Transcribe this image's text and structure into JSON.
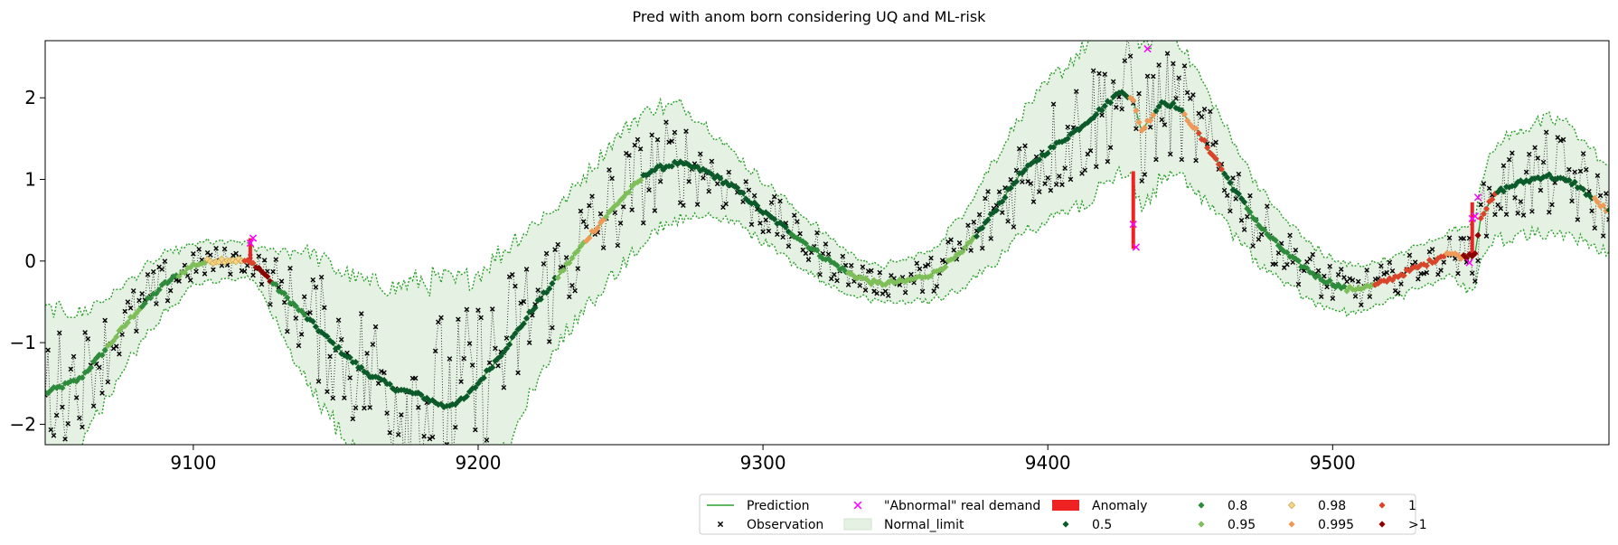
{
  "chart_data": {
    "type": "line",
    "title": "Pred with anom born considering UQ and ML-risk",
    "xlabel": "",
    "ylabel": "",
    "xlim": [
      9048,
      9597
    ],
    "ylim": [
      -2.25,
      2.7
    ],
    "x_ticks": [
      9100,
      9200,
      9300,
      9400,
      9500
    ],
    "y_ticks": [
      -2,
      -1,
      0,
      1,
      2
    ],
    "grid": false,
    "legend_position": "bottom-right, below plot",
    "colors": {
      "prediction": "#2ca02c",
      "band_fill": "#e5f2e3",
      "band_edge": "#2ca02c",
      "observation": "#000000",
      "abnormal": "#ff00ff",
      "anomaly": "#ee2222",
      "r0_5": "#0b5a2a",
      "r0_8": "#2e8b3c",
      "r0_95": "#7fbf5a",
      "r0_98": "#f5d58a",
      "r0_995": "#f09a5a",
      "r1": "#d9452a",
      "r_gt1": "#8b0000"
    },
    "prediction_knots": [
      [
        9048,
        -1.62
      ],
      [
        9060,
        -1.45
      ],
      [
        9070,
        -1.05
      ],
      [
        9080,
        -0.62
      ],
      [
        9090,
        -0.28
      ],
      [
        9100,
        -0.05
      ],
      [
        9106,
        0.0
      ],
      [
        9112,
        0.02
      ],
      [
        9118,
        0.0
      ],
      [
        9122,
        -0.05
      ],
      [
        9130,
        -0.35
      ],
      [
        9140,
        -0.7
      ],
      [
        9150,
        -1.05
      ],
      [
        9160,
        -1.35
      ],
      [
        9170,
        -1.55
      ],
      [
        9180,
        -1.65
      ],
      [
        9188,
        -1.78
      ],
      [
        9195,
        -1.7
      ],
      [
        9200,
        -1.5
      ],
      [
        9210,
        -1.05
      ],
      [
        9220,
        -0.55
      ],
      [
        9230,
        -0.1
      ],
      [
        9240,
        0.35
      ],
      [
        9250,
        0.75
      ],
      [
        9260,
        1.1
      ],
      [
        9270,
        1.2
      ],
      [
        9280,
        1.1
      ],
      [
        9290,
        0.9
      ],
      [
        9300,
        0.6
      ],
      [
        9310,
        0.35
      ],
      [
        9320,
        0.08
      ],
      [
        9330,
        -0.15
      ],
      [
        9340,
        -0.28
      ],
      [
        9350,
        -0.25
      ],
      [
        9360,
        -0.15
      ],
      [
        9370,
        0.1
      ],
      [
        9380,
        0.55
      ],
      [
        9390,
        1.05
      ],
      [
        9400,
        1.35
      ],
      [
        9410,
        1.6
      ],
      [
        9420,
        1.9
      ],
      [
        9426,
        2.1
      ],
      [
        9430,
        1.95
      ],
      [
        9433,
        1.6
      ],
      [
        9440,
        1.95
      ],
      [
        9445,
        1.9
      ],
      [
        9450,
        1.7
      ],
      [
        9458,
        1.3
      ],
      [
        9465,
        0.9
      ],
      [
        9475,
        0.4
      ],
      [
        9485,
        0.05
      ],
      [
        9495,
        -0.2
      ],
      [
        9505,
        -0.35
      ],
      [
        9515,
        -0.3
      ],
      [
        9525,
        -0.15
      ],
      [
        9535,
        0.0
      ],
      [
        9540,
        0.1
      ],
      [
        9546,
        0.05
      ],
      [
        9550,
        0.1
      ],
      [
        9552,
        0.55
      ],
      [
        9558,
        0.85
      ],
      [
        9565,
        0.95
      ],
      [
        9575,
        1.05
      ],
      [
        9585,
        0.95
      ],
      [
        9597,
        0.6
      ]
    ],
    "band_width_knots": [
      [
        9048,
        1.0
      ],
      [
        9075,
        0.5
      ],
      [
        9100,
        0.25
      ],
      [
        9122,
        0.2
      ],
      [
        9140,
        0.8
      ],
      [
        9170,
        1.2
      ],
      [
        9188,
        1.5
      ],
      [
        9210,
        1.2
      ],
      [
        9230,
        0.8
      ],
      [
        9250,
        0.8
      ],
      [
        9270,
        0.7
      ],
      [
        9290,
        0.4
      ],
      [
        9320,
        0.3
      ],
      [
        9340,
        0.2
      ],
      [
        9360,
        0.3
      ],
      [
        9380,
        0.6
      ],
      [
        9400,
        0.8
      ],
      [
        9420,
        1.0
      ],
      [
        9440,
        0.9
      ],
      [
        9460,
        0.6
      ],
      [
        9480,
        0.4
      ],
      [
        9500,
        0.3
      ],
      [
        9520,
        0.25
      ],
      [
        9540,
        0.25
      ],
      [
        9560,
        0.6
      ],
      [
        9580,
        0.7
      ],
      [
        9597,
        0.5
      ]
    ],
    "abnormal_points": [
      [
        9120,
        0.22
      ],
      [
        9121,
        0.28
      ],
      [
        9430,
        0.45
      ],
      [
        9431,
        0.17
      ],
      [
        9435,
        2.6
      ],
      [
        9548,
        -0.02
      ],
      [
        9549,
        0.52
      ],
      [
        9550,
        0.55
      ],
      [
        9551,
        0.78
      ]
    ],
    "anomaly_spans": [
      [
        9120,
        0.0,
        0.28
      ],
      [
        9430,
        0.15,
        1.1
      ],
      [
        9549,
        0.05,
        0.72
      ]
    ],
    "risk_segments": [
      {
        "from": 9048,
        "to": 9070,
        "level": "r0_8"
      },
      {
        "from": 9070,
        "to": 9082,
        "level": "r0_95"
      },
      {
        "from": 9082,
        "to": 9095,
        "level": "r0_8"
      },
      {
        "from": 9095,
        "to": 9105,
        "level": "r0_95"
      },
      {
        "from": 9105,
        "to": 9118,
        "level": "r0_98"
      },
      {
        "from": 9118,
        "to": 9122,
        "level": "r1"
      },
      {
        "from": 9122,
        "to": 9128,
        "level": "r_gt1"
      },
      {
        "from": 9128,
        "to": 9140,
        "level": "r0_8"
      },
      {
        "from": 9140,
        "to": 9228,
        "level": "r0_5"
      },
      {
        "from": 9228,
        "to": 9238,
        "level": "r0_95"
      },
      {
        "from": 9238,
        "to": 9245,
        "level": "r0_995"
      },
      {
        "from": 9245,
        "to": 9258,
        "level": "r0_95"
      },
      {
        "from": 9258,
        "to": 9310,
        "level": "r0_5"
      },
      {
        "from": 9310,
        "to": 9330,
        "level": "r0_8"
      },
      {
        "from": 9330,
        "to": 9375,
        "level": "r0_95"
      },
      {
        "from": 9375,
        "to": 9429,
        "level": "r0_5"
      },
      {
        "from": 9429,
        "to": 9438,
        "level": "r0_995"
      },
      {
        "from": 9438,
        "to": 9448,
        "level": "r0_5"
      },
      {
        "from": 9448,
        "to": 9453,
        "level": "r0_995"
      },
      {
        "from": 9453,
        "to": 9462,
        "level": "r1"
      },
      {
        "from": 9462,
        "to": 9470,
        "level": "r0_5"
      },
      {
        "from": 9470,
        "to": 9505,
        "level": "r0_8"
      },
      {
        "from": 9505,
        "to": 9515,
        "level": "r0_95"
      },
      {
        "from": 9515,
        "to": 9540,
        "level": "r1"
      },
      {
        "from": 9540,
        "to": 9546,
        "level": "r0_995"
      },
      {
        "from": 9546,
        "to": 9552,
        "level": "r_gt1"
      },
      {
        "from": 9552,
        "to": 9558,
        "level": "r1"
      },
      {
        "from": 9558,
        "to": 9592,
        "level": "r0_5"
      },
      {
        "from": 9592,
        "to": 9597,
        "level": "r0_995"
      }
    ],
    "legend": [
      {
        "key": "prediction",
        "label": "Prediction",
        "kind": "line"
      },
      {
        "key": "observation",
        "label": "Observation",
        "kind": "x-marker"
      },
      {
        "key": "abnormal",
        "label": "\"Abnormal\" real demand",
        "kind": "x-marker"
      },
      {
        "key": "band_fill",
        "label": "Normal_limit",
        "kind": "patch"
      },
      {
        "key": "anomaly",
        "label": "Anomaly",
        "kind": "bar"
      },
      {
        "key": "r0_5",
        "label": "0.5",
        "kind": "diamond"
      },
      {
        "key": "r0_8",
        "label": "0.8",
        "kind": "diamond"
      },
      {
        "key": "r0_95",
        "label": "0.95",
        "kind": "diamond"
      },
      {
        "key": "r0_98",
        "label": "0.98",
        "kind": "diamond"
      },
      {
        "key": "r0_995",
        "label": "0.995",
        "kind": "diamond"
      },
      {
        "key": "r1",
        "label": "1",
        "kind": "diamond"
      },
      {
        "key": "r_gt1",
        "label": ">1",
        "kind": "diamond"
      }
    ]
  }
}
